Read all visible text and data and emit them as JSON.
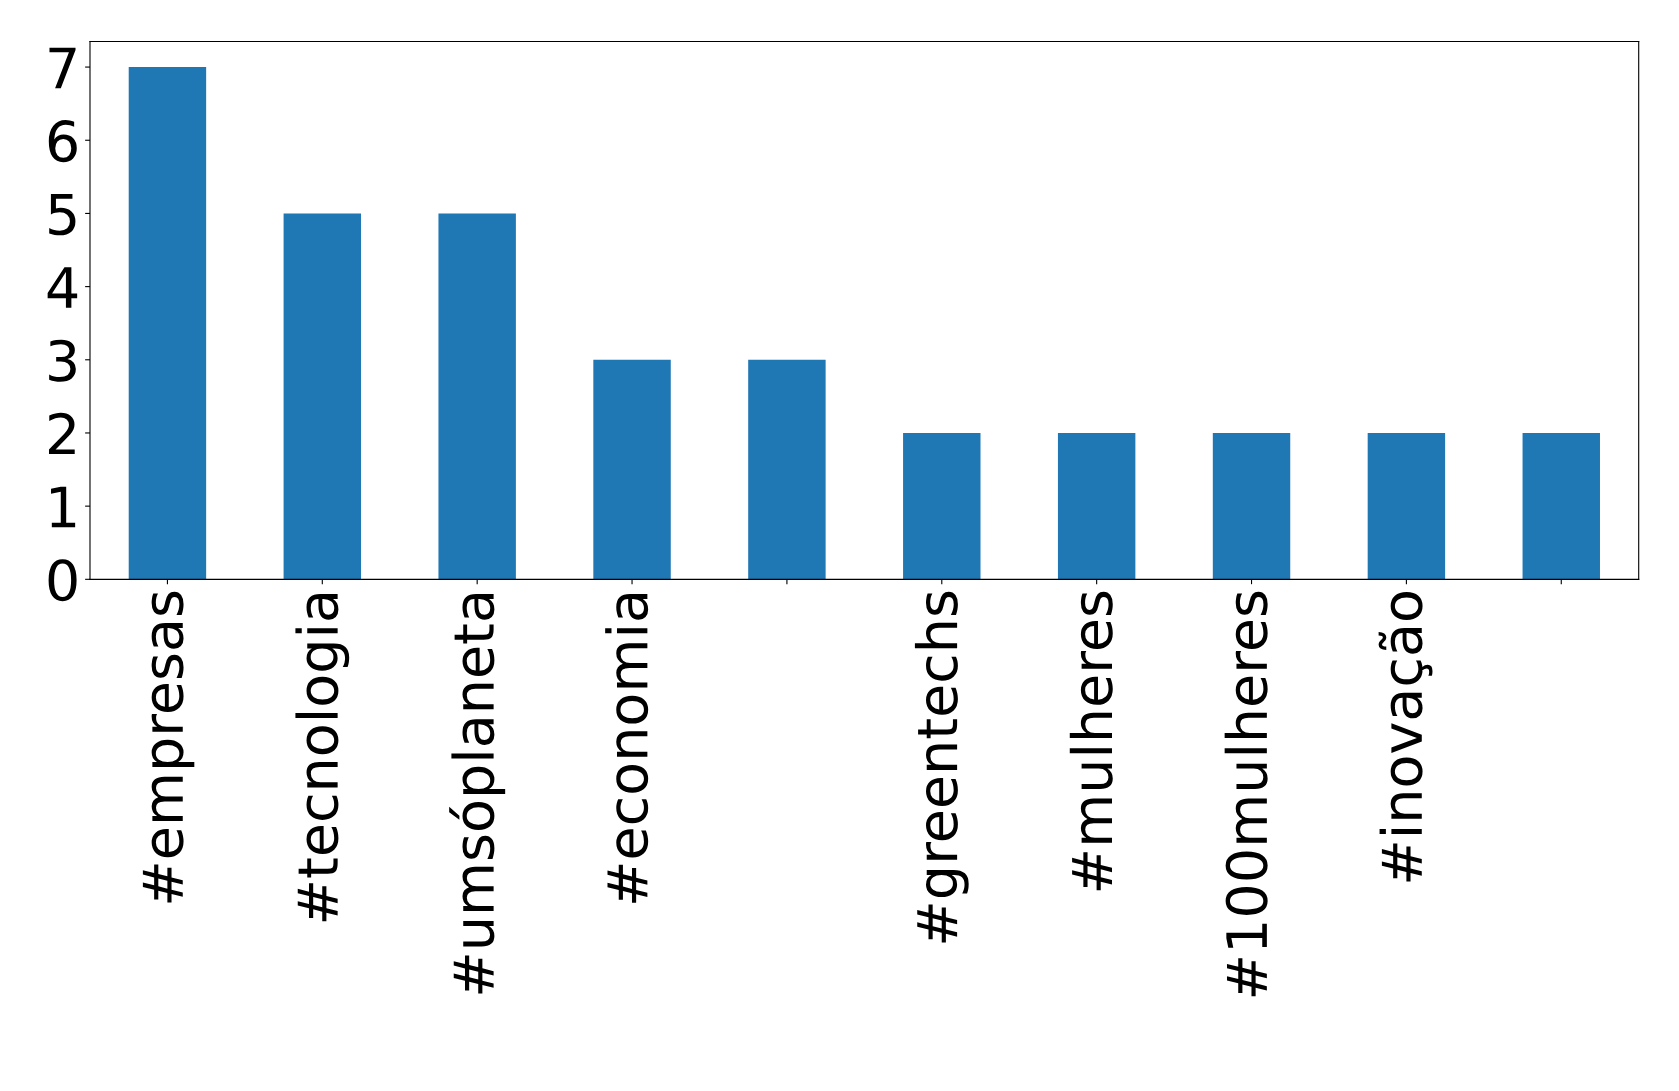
{
  "chart_data": {
    "type": "bar",
    "categories": [
      "#empresas",
      "#tecnologia",
      "#umsóplaneta",
      "#economia",
      null,
      "#greentechs",
      "#mulheres",
      "#100mulheres",
      "#inovação",
      null
    ],
    "values": [
      7,
      5,
      5,
      3,
      3,
      2,
      2,
      2,
      2,
      2
    ],
    "color": "#1f77b4",
    "ylim": [
      0,
      7.35
    ],
    "yticks": [
      0,
      1,
      2,
      3,
      4,
      5,
      6,
      7
    ],
    "grid": false
  }
}
